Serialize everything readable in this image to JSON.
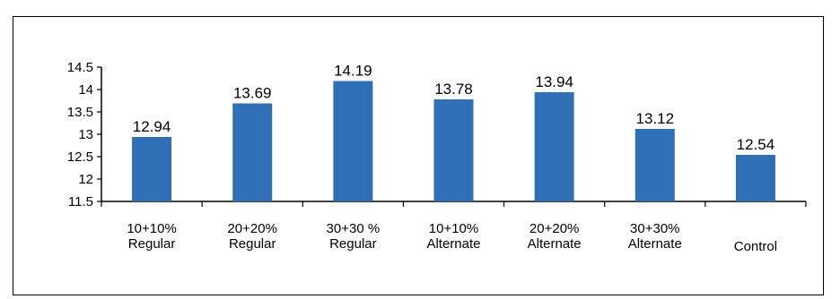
{
  "chart_data": {
    "type": "bar",
    "categories": [
      [
        "10+10%",
        "Regular"
      ],
      [
        "20+20%",
        "Regular"
      ],
      [
        "30+30 %",
        "Regular"
      ],
      [
        "10+10%",
        "Alternate"
      ],
      [
        "20+20%",
        "Alternate"
      ],
      [
        "30+30%",
        "Alternate"
      ],
      [
        "Control"
      ]
    ],
    "values": [
      12.94,
      13.69,
      14.19,
      13.78,
      13.94,
      13.12,
      12.54
    ],
    "data_labels": [
      "12.94",
      "13.69",
      "14.19",
      "13.78",
      "13.94",
      "13.12",
      "12.54"
    ],
    "yticks": [
      "11.5",
      "12",
      "12.5",
      "13",
      "13.5",
      "14",
      "14.5"
    ],
    "ylim": [
      11.5,
      14.5
    ],
    "title": "",
    "xlabel": "",
    "ylabel": "",
    "grid": false,
    "legend": "none",
    "bar_color": "#2e6fb5",
    "axis_color": "#000000"
  }
}
